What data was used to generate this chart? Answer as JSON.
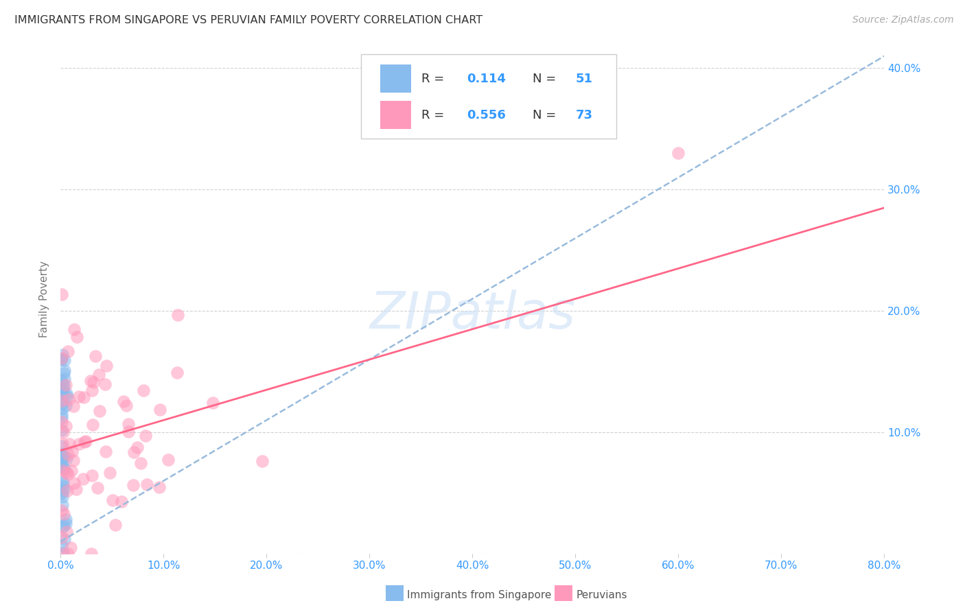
{
  "title": "IMMIGRANTS FROM SINGAPORE VS PERUVIAN FAMILY POVERTY CORRELATION CHART",
  "source": "Source: ZipAtlas.com",
  "ylabel": "Family Poverty",
  "legend_label1": "Immigrants from Singapore",
  "legend_label2": "Peruvians",
  "R1": "0.114",
  "N1": "51",
  "R2": "0.556",
  "N2": "73",
  "color_singapore": "#88bbee",
  "color_peruvian": "#ff99bb",
  "color_line_singapore": "#99bbdd",
  "color_line_peruvian": "#ff6688",
  "xlim": [
    0.0,
    0.8
  ],
  "ylim": [
    0.0,
    0.42
  ],
  "watermark": "ZIPatlas",
  "sg_line_x0": 0.0,
  "sg_line_y0": 0.01,
  "sg_line_x1": 0.8,
  "sg_line_y1": 0.41,
  "peru_line_x0": 0.0,
  "peru_line_y0": 0.085,
  "peru_line_x1": 0.8,
  "peru_line_y1": 0.285
}
